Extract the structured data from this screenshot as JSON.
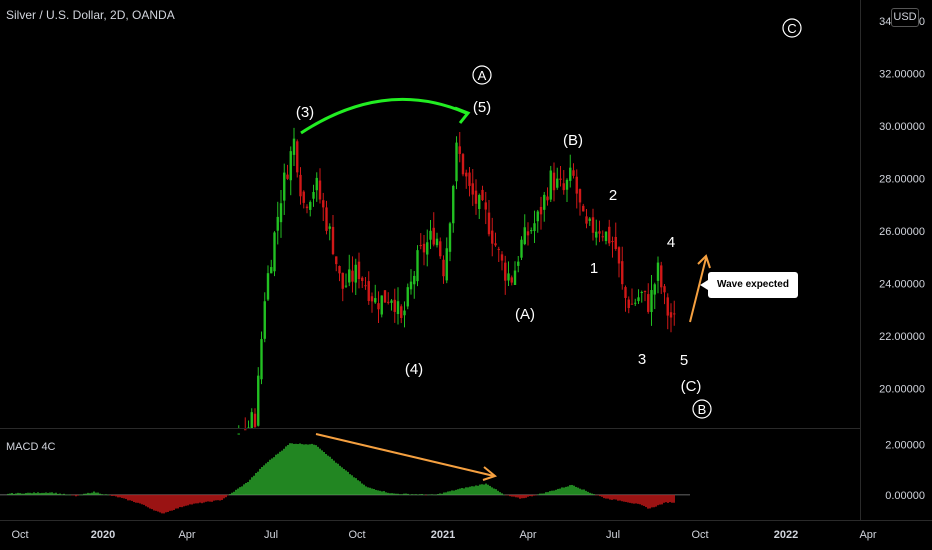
{
  "header": {
    "title": "Silver / U.S. Dollar, 2D, OANDA",
    "currency": "USD"
  },
  "macd": {
    "label": "MACD 4C"
  },
  "callout": {
    "text": "Wave expected"
  },
  "colors": {
    "up": "#22c022",
    "down": "#d01818",
    "macd_up": "#2aa82a",
    "macd_down": "#c01818",
    "arrow_green": "#22ee22",
    "arrow_orange": "#f5a040",
    "grid": "#1a1a1a"
  },
  "chart_data": {
    "type": "candlestick",
    "price_axis": {
      "ticks": [
        "34.00000",
        "32.00000",
        "30.00000",
        "28.00000",
        "26.00000",
        "24.00000",
        "22.00000",
        "20.00000"
      ],
      "ylim": [
        18.5,
        34.8
      ]
    },
    "macd_axis": {
      "ticks": [
        "2.00000",
        "0.00000"
      ],
      "ylim": [
        -1.0,
        2.5
      ]
    },
    "time_axis": [
      "Oct",
      "2020",
      "Apr",
      "Jul",
      "Oct",
      "2021",
      "Apr",
      "Jul",
      "Oct",
      "2022",
      "Apr"
    ],
    "price_path": [
      [
        0,
        17.5
      ],
      [
        0.9,
        17.6
      ],
      [
        1.0,
        17.3
      ],
      [
        1.8,
        17.0
      ],
      [
        1.9,
        15.5
      ],
      [
        2.3,
        16.5
      ],
      [
        2.7,
        18.0
      ],
      [
        2.9,
        19.0
      ],
      [
        3.0,
        23.5
      ],
      [
        3.2,
        27.5
      ],
      [
        3.35,
        29.5
      ],
      [
        3.45,
        27.0
      ],
      [
        3.6,
        27.8
      ],
      [
        3.8,
        25.5
      ],
      [
        3.9,
        23.8
      ],
      [
        4.1,
        24.5
      ],
      [
        4.3,
        23.3
      ],
      [
        4.5,
        23.6
      ],
      [
        4.6,
        22.5
      ],
      [
        4.8,
        25.0
      ],
      [
        5.0,
        26.0
      ],
      [
        5.1,
        24.5
      ],
      [
        5.25,
        29.2
      ],
      [
        5.4,
        27.5
      ],
      [
        5.6,
        26.5
      ],
      [
        5.8,
        24.5
      ],
      [
        5.9,
        24.2
      ],
      [
        6.0,
        25.5
      ],
      [
        6.2,
        26.5
      ],
      [
        6.35,
        28.0
      ],
      [
        6.5,
        27.5
      ],
      [
        6.6,
        28.2
      ],
      [
        6.75,
        26.0
      ],
      [
        6.9,
        26.2
      ],
      [
        7.1,
        25.5
      ],
      [
        7.2,
        23.5
      ],
      [
        7.3,
        23.2
      ],
      [
        7.4,
        23.6
      ],
      [
        7.5,
        23.2
      ],
      [
        7.6,
        24.5
      ],
      [
        7.7,
        23.0
      ],
      [
        7.8,
        22.5
      ]
    ],
    "macd_path": [
      [
        0,
        0.05
      ],
      [
        0.5,
        0.1
      ],
      [
        0.8,
        -0.05
      ],
      [
        1.0,
        0.12
      ],
      [
        1.3,
        -0.1
      ],
      [
        1.55,
        -0.35
      ],
      [
        1.8,
        -0.75
      ],
      [
        2.1,
        -0.4
      ],
      [
        2.5,
        -0.2
      ],
      [
        2.8,
        0.5
      ],
      [
        3.0,
        1.2
      ],
      [
        3.3,
        2.05
      ],
      [
        3.6,
        2.0
      ],
      [
        3.9,
        1.1
      ],
      [
        4.2,
        0.3
      ],
      [
        4.5,
        0.05
      ],
      [
        5.0,
        0.0
      ],
      [
        5.3,
        0.25
      ],
      [
        5.6,
        0.45
      ],
      [
        5.8,
        0.0
      ],
      [
        6.0,
        -0.15
      ],
      [
        6.3,
        0.1
      ],
      [
        6.6,
        0.4
      ],
      [
        6.8,
        0.1
      ],
      [
        7.0,
        -0.15
      ],
      [
        7.2,
        -0.25
      ],
      [
        7.4,
        -0.4
      ],
      [
        7.5,
        -0.55
      ],
      [
        7.7,
        -0.3
      ],
      [
        7.8,
        -0.3
      ]
    ]
  },
  "annotations": {
    "wave_3": "(3)",
    "wave_5": "(5)",
    "wave_A_circle": "A",
    "wave_4": "(4)",
    "wave_A": "(A)",
    "wave_B": "(B)",
    "wave_C": "(C)",
    "wave_B_circle": "B",
    "wave_C_circle": "C",
    "w1": "1",
    "w2": "2",
    "w3": "3",
    "w4": "4",
    "w5": "5"
  }
}
